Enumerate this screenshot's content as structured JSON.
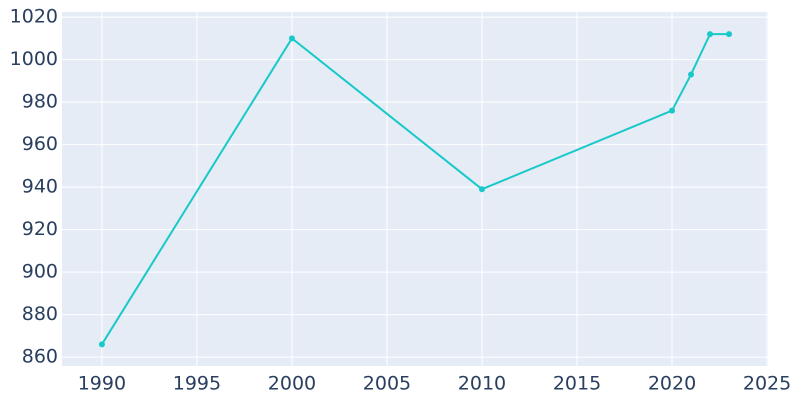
{
  "chart_data": {
    "type": "line",
    "x": [
      1990,
      2000,
      2010,
      2020,
      2021,
      2022,
      2023
    ],
    "series": [
      {
        "color": "#19c9c9",
        "values": [
          866,
          1010,
          939,
          976,
          993,
          1012,
          1012
        ]
      }
    ],
    "xlim": [
      1987.9,
      2025.05
    ],
    "xticks": [
      1990,
      1995,
      2000,
      2005,
      2010,
      2015,
      2020,
      2025
    ],
    "ylim": [
      855.8,
      1022.4
    ],
    "yticks": [
      860,
      880,
      900,
      920,
      940,
      960,
      980,
      1000,
      1020
    ],
    "grid": true
  }
}
